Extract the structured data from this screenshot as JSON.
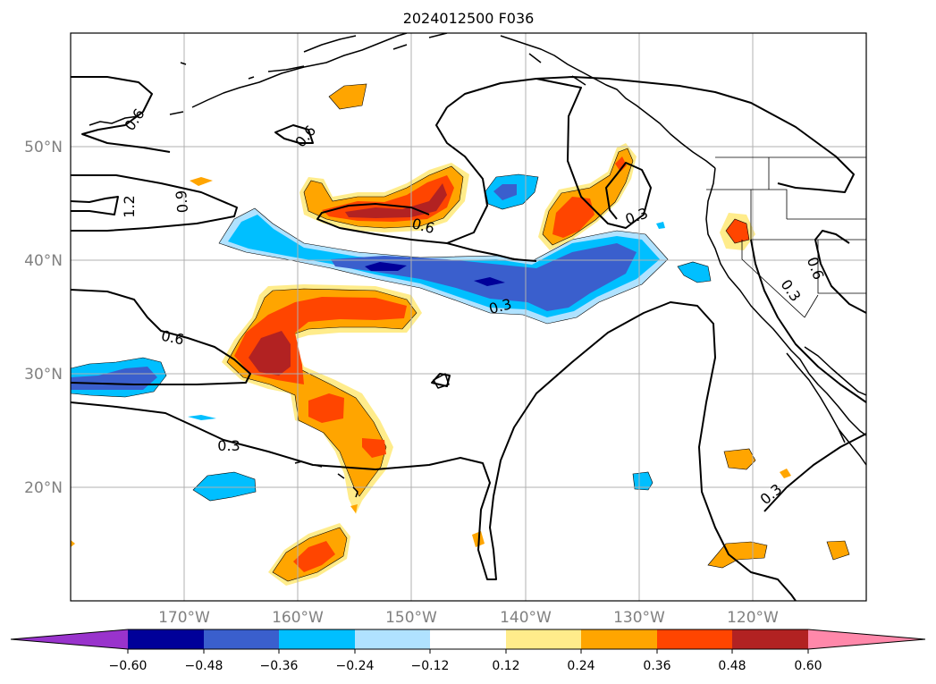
{
  "title": "2024012500 F036",
  "colors": {
    "lt_m060": "#9933cc",
    "m060_m048": "#000099",
    "m048_m036": "#3a5fcd",
    "m036_m024": "#00bfff",
    "m024_m012": "#b0e2ff",
    "m012_p012": "#ffffff",
    "p012_p024": "#ffec8b",
    "p024_p036": "#ffa500",
    "p036_p048": "#ff4500",
    "p048_p060": "#b22222",
    "gt_p060": "#ff88aa",
    "grid": "#b0b0b0",
    "tick_labels": "#808080"
  },
  "chart_data": {
    "type": "heatmap",
    "title": "2024012500 F036",
    "projection": "equirectangular map, North Pacific",
    "xlim": [
      -180,
      -110
    ],
    "ylim": [
      10,
      60
    ],
    "grid": true,
    "xticks": [
      {
        "value": -170,
        "label": "170°W"
      },
      {
        "value": -160,
        "label": "160°W"
      },
      {
        "value": -150,
        "label": "150°W"
      },
      {
        "value": -140,
        "label": "140°W"
      },
      {
        "value": -130,
        "label": "130°W"
      },
      {
        "value": -120,
        "label": "120°W"
      }
    ],
    "yticks": [
      {
        "value": 20,
        "label": "20°N"
      },
      {
        "value": 30,
        "label": "30°N"
      },
      {
        "value": 40,
        "label": "40°N"
      },
      {
        "value": 50,
        "label": "50°N"
      }
    ],
    "colorbar": {
      "position": "bottom",
      "extend": "both",
      "levels": [
        -0.6,
        -0.48,
        -0.36,
        -0.24,
        -0.12,
        0.12,
        0.24,
        0.36,
        0.48,
        0.6
      ],
      "tick_labels": [
        "−0.60",
        "−0.48",
        "−0.36",
        "−0.24",
        "−0.12",
        "0.12",
        "0.24",
        "0.36",
        "0.48",
        "0.60"
      ]
    },
    "contour_levels": [
      0.3,
      0.6,
      0.9,
      1.2
    ],
    "contour_labels": [
      {
        "lon": -163.2,
        "lat": 33.3,
        "text": "0.6"
      },
      {
        "lon": -158.8,
        "lat": 23.8,
        "text": "0.3"
      },
      {
        "lon": -149.0,
        "lat": 43.0,
        "text": "0.6"
      },
      {
        "lon": -141.7,
        "lat": 35.5,
        "text": "0.3"
      },
      {
        "lon": -129.1,
        "lat": 43.6,
        "text": "0.3"
      },
      {
        "lon": -155.9,
        "lat": 51.0,
        "text": "0.6"
      },
      {
        "lon": -175.6,
        "lat": 52.5,
        "text": "0.6"
      },
      {
        "lon": -175.5,
        "lat": 44.7,
        "text": "1.2"
      },
      {
        "lon": -168.4,
        "lat": 45.2,
        "text": "0.9"
      },
      {
        "lon": -114.7,
        "lat": 38.9,
        "text": "0.6"
      },
      {
        "lon": -117.5,
        "lat": 36.5,
        "text": "0.3"
      },
      {
        "lon": -121.1,
        "lat": 19.5,
        "text": "0.3"
      }
    ],
    "features": [
      {
        "sign": "+",
        "max": ">0.48",
        "lon": -159,
        "lat": 31.5,
        "desc": "subtropical plume"
      },
      {
        "sign": "+",
        "max": ">0.48",
        "lon": -152,
        "lat": 45,
        "desc": "band near 45°N"
      },
      {
        "sign": "+",
        "max": ">0.36",
        "lon": -136.5,
        "lat": 43.5
      },
      {
        "sign": "+",
        "max": ">0.36",
        "lon": -160,
        "lat": 14
      },
      {
        "sign": "-",
        "max": "<-0.48",
        "lon": -151,
        "lat": 39.3,
        "desc": "band near 39°N"
      },
      {
        "sign": "-",
        "max": "<-0.36",
        "lon": -136,
        "lat": 38
      },
      {
        "sign": "-",
        "max": "<-0.36",
        "lon": -176,
        "lat": 29.5
      }
    ]
  }
}
